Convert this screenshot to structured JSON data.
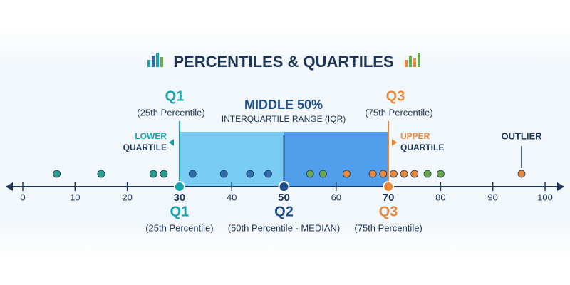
{
  "chart_data": {
    "type": "strip",
    "title": "PERCENTILES & QUARTILES",
    "xlim": [
      0,
      100
    ],
    "xticks": [
      0,
      10,
      20,
      30,
      40,
      50,
      60,
      70,
      80,
      90,
      100
    ],
    "x": [
      6.5,
      15,
      25,
      27,
      32.5,
      38.5,
      43.5,
      47,
      55,
      57.5,
      62,
      67,
      69,
      71,
      73,
      75,
      77.5,
      80,
      95.5
    ],
    "colors": [
      "#2a9d8f",
      "#2a9d8f",
      "#2a9d8f",
      "#2a9d8f",
      "#2f6ea8",
      "#2f6ea8",
      "#2f6ea8",
      "#2f6ea8",
      "#6aa84f",
      "#6aa84f",
      "#e8883a",
      "#e8883a",
      "#e8883a",
      "#e8883a",
      "#e8883a",
      "#e8883a",
      "#6aa84f",
      "#6aa84f",
      "#e8883a"
    ],
    "quartiles": [
      {
        "label": "Q1",
        "sublabel": "(25th Percentile)",
        "value": 30,
        "color": "#1aa3a8"
      },
      {
        "label": "Q2",
        "sublabel": "(50th Percentile - MEDIAN)",
        "value": 50,
        "color": "#1e4f8a"
      },
      {
        "label": "Q3",
        "sublabel": "(75th Percentile)",
        "value": 70,
        "color": "#e8883a"
      }
    ],
    "top_labels": {
      "q1": {
        "label": "Q1",
        "sublabel": "(25th Percentile)"
      },
      "q3": {
        "label": "Q3",
        "sublabel": "(75th Percentile)"
      },
      "middle": "MIDDLE 50%",
      "iqr": "INTERQUARTILE RANGE (IQR)",
      "lower": [
        "LOWER",
        "QUARTILE"
      ],
      "upper": [
        "UPPER",
        "QUARTILE"
      ],
      "outlier": "OUTLIER"
    }
  }
}
